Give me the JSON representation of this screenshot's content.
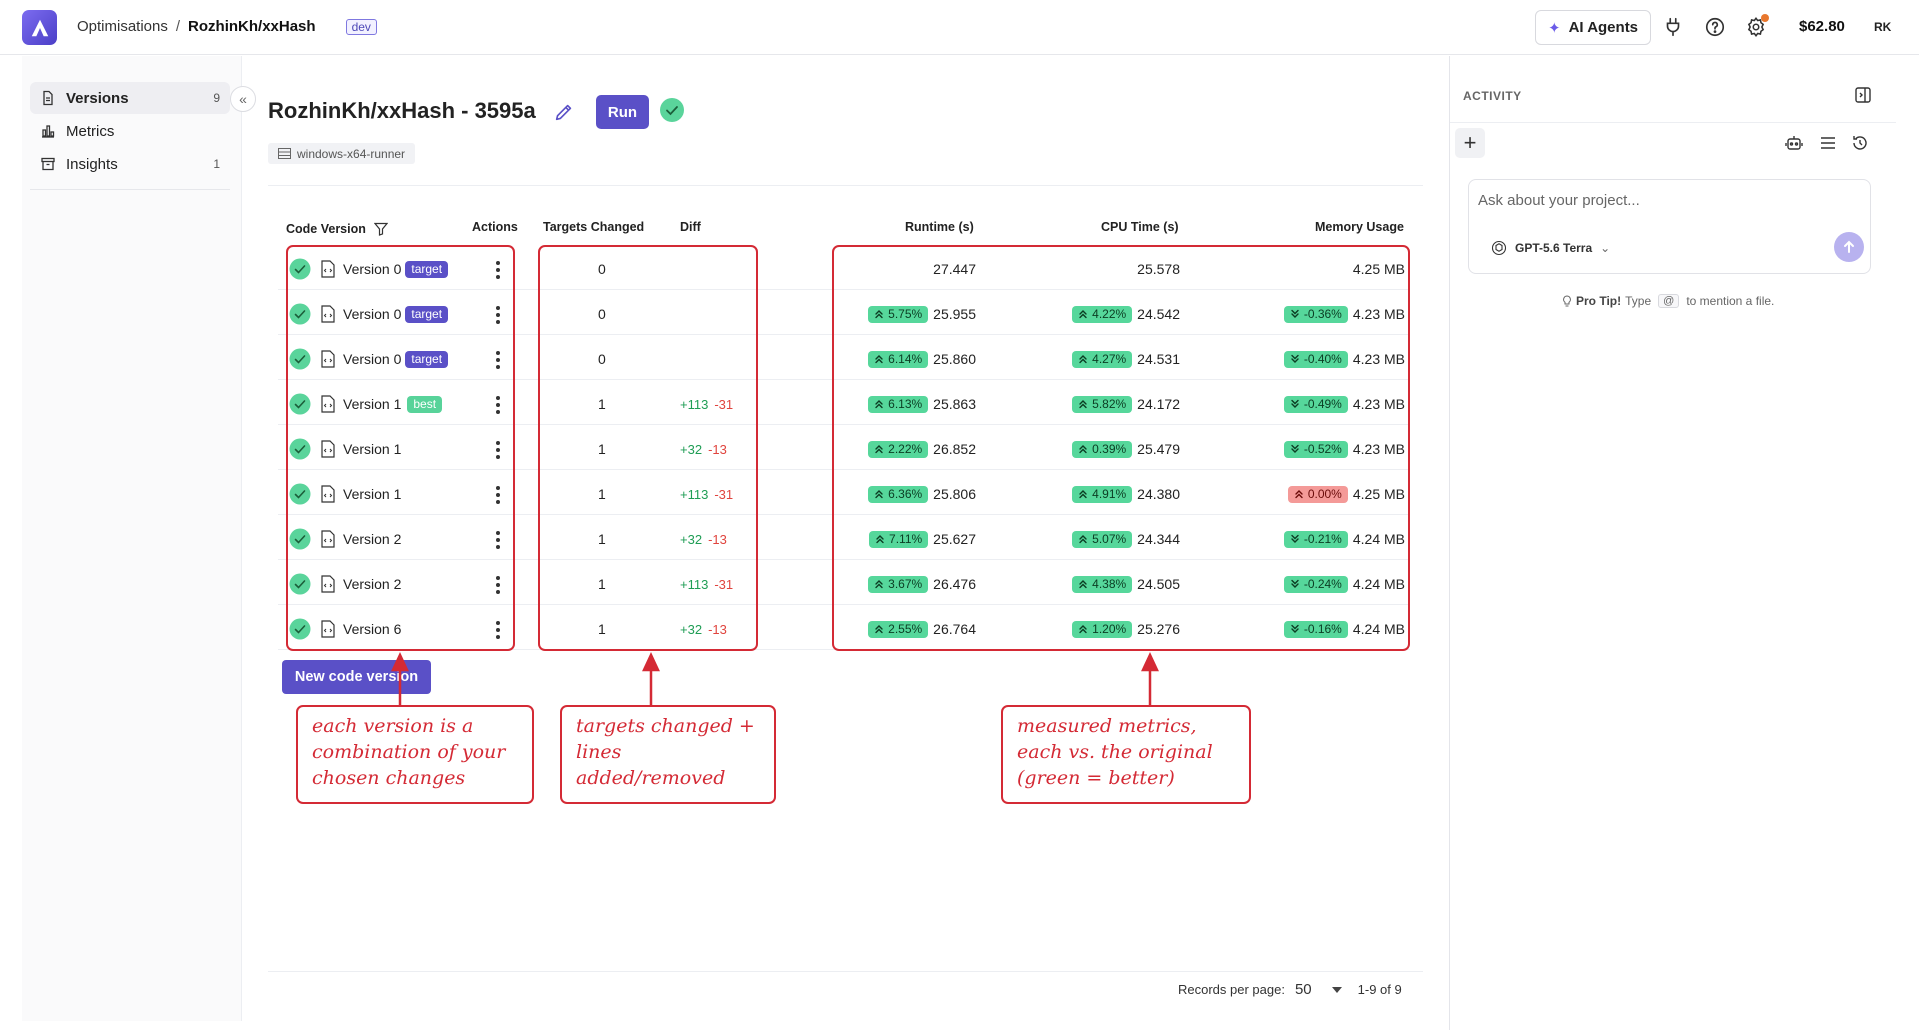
{
  "header": {
    "breadcrumb_root": "Optimisations",
    "breadcrumb_sep": "/",
    "breadcrumb_project": "RozhinKh/xxHash",
    "env_badge": "dev",
    "ai_agents_label": "AI Agents",
    "balance": "$62.80",
    "user_initials": "RK"
  },
  "sidebar": {
    "items": [
      {
        "label": "Versions",
        "count": "9",
        "icon": "file-icon"
      },
      {
        "label": "Metrics",
        "count": "",
        "icon": "bar-chart-icon"
      },
      {
        "label": "Insights",
        "count": "1",
        "icon": "archive-icon"
      }
    ]
  },
  "main": {
    "title": "RozhinKh/xxHash - 3595a",
    "run_label": "Run",
    "runner": "windows-x64-runner",
    "new_version_label": "New code version"
  },
  "table": {
    "headers": {
      "code_version": "Code Version",
      "actions": "Actions",
      "targets_changed": "Targets Changed",
      "diff": "Diff",
      "runtime": "Runtime (s)",
      "cpu_time": "CPU Time (s)",
      "memory": "Memory Usage"
    },
    "rows": [
      {
        "version": "Version 0",
        "tag": "target",
        "targets": "0",
        "add": "",
        "del": "",
        "runtime_pct": "",
        "runtime": "27.447",
        "cpu_pct": "",
        "cpu": "25.578",
        "mem_pct": "",
        "mem_dir": "",
        "mem": "4.25 MB"
      },
      {
        "version": "Version 0",
        "tag": "target",
        "targets": "0",
        "add": "",
        "del": "",
        "runtime_pct": "5.75%",
        "runtime": "25.955",
        "cpu_pct": "4.22%",
        "cpu": "24.542",
        "mem_pct": "-0.36%",
        "mem_dir": "down",
        "mem": "4.23 MB"
      },
      {
        "version": "Version 0",
        "tag": "target",
        "targets": "0",
        "add": "",
        "del": "",
        "runtime_pct": "6.14%",
        "runtime": "25.860",
        "cpu_pct": "4.27%",
        "cpu": "24.531",
        "mem_pct": "-0.40%",
        "mem_dir": "down",
        "mem": "4.23 MB"
      },
      {
        "version": "Version 1",
        "tag": "best",
        "targets": "1",
        "add": "+113",
        "del": "-31",
        "runtime_pct": "6.13%",
        "runtime": "25.863",
        "cpu_pct": "5.82%",
        "cpu": "24.172",
        "mem_pct": "-0.49%",
        "mem_dir": "down",
        "mem": "4.23 MB"
      },
      {
        "version": "Version 1",
        "tag": "",
        "targets": "1",
        "add": "+32",
        "del": "-13",
        "runtime_pct": "2.22%",
        "runtime": "26.852",
        "cpu_pct": "0.39%",
        "cpu": "25.479",
        "mem_pct": "-0.52%",
        "mem_dir": "down",
        "mem": "4.23 MB"
      },
      {
        "version": "Version 1",
        "tag": "",
        "targets": "1",
        "add": "+113",
        "del": "-31",
        "runtime_pct": "6.36%",
        "runtime": "25.806",
        "cpu_pct": "4.91%",
        "cpu": "24.380",
        "mem_pct": "0.00%",
        "mem_dir": "up-red",
        "mem": "4.25 MB"
      },
      {
        "version": "Version 2",
        "tag": "",
        "targets": "1",
        "add": "+32",
        "del": "-13",
        "runtime_pct": "7.11%",
        "runtime": "25.627",
        "cpu_pct": "5.07%",
        "cpu": "24.344",
        "mem_pct": "-0.21%",
        "mem_dir": "down",
        "mem": "4.24 MB"
      },
      {
        "version": "Version 2",
        "tag": "",
        "targets": "1",
        "add": "+113",
        "del": "-31",
        "runtime_pct": "3.67%",
        "runtime": "26.476",
        "cpu_pct": "4.38%",
        "cpu": "24.505",
        "mem_pct": "-0.24%",
        "mem_dir": "down",
        "mem": "4.24 MB"
      },
      {
        "version": "Version 6",
        "tag": "",
        "targets": "1",
        "add": "+32",
        "del": "-13",
        "runtime_pct": "2.55%",
        "runtime": "26.764",
        "cpu_pct": "1.20%",
        "cpu": "25.276",
        "mem_pct": "-0.16%",
        "mem_dir": "down",
        "mem": "4.24 MB"
      }
    ]
  },
  "annotations": {
    "note1": "each version is a combination of your chosen changes",
    "note2": "targets changed + lines added/removed",
    "note3": "measured metrics, each vs. the original (green = better)"
  },
  "pagination": {
    "records_label": "Records per page:",
    "per_page": "50",
    "range": "1-9 of 9"
  },
  "activity": {
    "title": "ACTIVITY",
    "placeholder": "Ask about your project...",
    "model": "GPT-5.6 Terra",
    "tip_bold": "Pro Tip!",
    "tip_pre": "Type",
    "tip_key": "@",
    "tip_post": "to mention a file."
  },
  "colors": {
    "accent": "#5a50c7",
    "positive": "#56d79b",
    "negative": "#f49a98",
    "annotation": "#d42a35"
  }
}
